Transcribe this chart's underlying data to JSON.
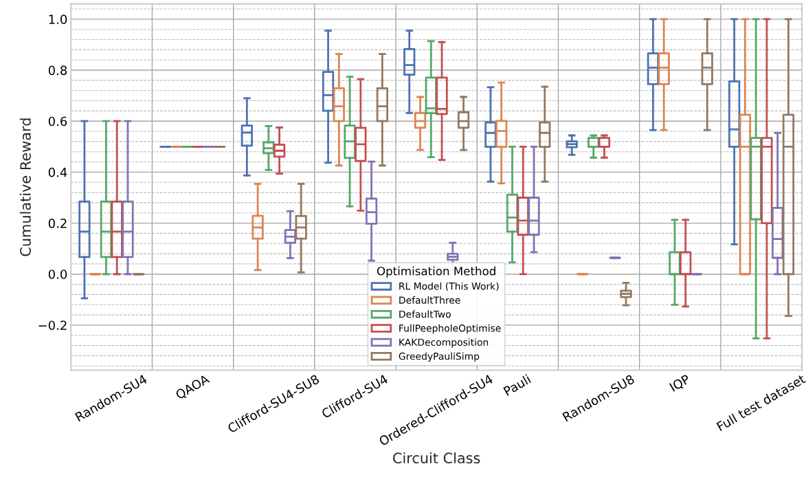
{
  "chart_data": {
    "type": "box",
    "xlabel": "Circuit Class",
    "ylabel": "Cumulative Reward",
    "legend_title": "Optimisation Method",
    "legend": "bottom",
    "grid": true,
    "categories": [
      "Random-SU4",
      "QAOA",
      "Clifford-SU4-SU8",
      "Clifford-SU4",
      "Ordered-Clifford-SU4",
      "Pauli",
      "Random-SU8",
      "IQP",
      "Full test dataset"
    ],
    "ylim": [
      -0.377,
      1.06
    ],
    "yticks": [
      {
        "value": -0.2,
        "label": "−0.2"
      },
      {
        "value": 0.0,
        "label": "0.0"
      },
      {
        "value": 0.2,
        "label": "0.2"
      },
      {
        "value": 0.4,
        "label": "0.4"
      },
      {
        "value": 0.6,
        "label": "0.6"
      },
      {
        "value": 0.8,
        "label": "0.8"
      },
      {
        "value": 1.0,
        "label": "1.0"
      }
    ],
    "series": [
      {
        "name": "RL Model (This Work)",
        "color": "#4c72b0",
        "boxes": [
          {
            "low": -0.095,
            "q1": 0.067,
            "median": 0.167,
            "q3": 0.285,
            "high": 0.6
          },
          {
            "low": 0.5,
            "q1": 0.5,
            "median": 0.5,
            "q3": 0.5,
            "high": 0.5
          },
          {
            "low": 0.387,
            "q1": 0.504,
            "median": 0.555,
            "q3": 0.583,
            "high": 0.69
          },
          {
            "low": 0.437,
            "q1": 0.641,
            "median": 0.702,
            "q3": 0.793,
            "high": 0.955
          },
          {
            "low": 0.632,
            "q1": 0.782,
            "median": 0.82,
            "q3": 0.883,
            "high": 0.955
          },
          {
            "low": 0.363,
            "q1": 0.499,
            "median": 0.554,
            "q3": 0.595,
            "high": 0.733
          },
          {
            "low": 0.468,
            "q1": 0.498,
            "median": 0.51,
            "q3": 0.521,
            "high": 0.544
          },
          {
            "low": 0.565,
            "q1": 0.745,
            "median": 0.81,
            "q3": 0.866,
            "high": 1.0
          },
          {
            "low": 0.117,
            "q1": 0.5,
            "median": 0.568,
            "q3": 0.756,
            "high": 1.0
          }
        ]
      },
      {
        "name": "DefaultThree",
        "color": "#dd8452",
        "boxes": [
          {
            "low": 0.0,
            "q1": 0.0,
            "median": 0.0,
            "q3": 0.0,
            "high": 0.0
          },
          {
            "low": 0.5,
            "q1": 0.5,
            "median": 0.5,
            "q3": 0.5,
            "high": 0.5
          },
          {
            "low": 0.016,
            "q1": 0.139,
            "median": 0.183,
            "q3": 0.229,
            "high": 0.354
          },
          {
            "low": 0.426,
            "q1": 0.6,
            "median": 0.658,
            "q3": 0.729,
            "high": 0.863
          },
          {
            "low": 0.487,
            "q1": 0.574,
            "median": 0.6,
            "q3": 0.632,
            "high": 0.695
          },
          {
            "low": 0.356,
            "q1": 0.499,
            "median": 0.561,
            "q3": 0.601,
            "high": 0.751
          },
          {
            "low": 0.0,
            "q1": 0.0,
            "median": 0.0,
            "q3": 0.0,
            "high": 0.0
          },
          {
            "low": 0.565,
            "q1": 0.745,
            "median": 0.81,
            "q3": 0.866,
            "high": 1.0
          },
          {
            "low": 0.0,
            "q1": 0.0,
            "median": 0.5,
            "q3": 0.625,
            "high": 1.0
          }
        ]
      },
      {
        "name": "DefaultTwo",
        "color": "#55a868",
        "boxes": [
          {
            "low": 0.0,
            "q1": 0.067,
            "median": 0.167,
            "q3": 0.285,
            "high": 0.6
          },
          {
            "low": 0.5,
            "q1": 0.5,
            "median": 0.5,
            "q3": 0.5,
            "high": 0.5
          },
          {
            "low": 0.409,
            "q1": 0.474,
            "median": 0.494,
            "q3": 0.517,
            "high": 0.581
          },
          {
            "low": 0.266,
            "q1": 0.456,
            "median": 0.521,
            "q3": 0.583,
            "high": 0.774
          },
          {
            "low": 0.459,
            "q1": 0.631,
            "median": 0.65,
            "q3": 0.771,
            "high": 0.914
          },
          {
            "low": 0.046,
            "q1": 0.167,
            "median": 0.222,
            "q3": 0.312,
            "high": 0.5
          },
          {
            "low": 0.457,
            "q1": 0.5,
            "median": 0.5,
            "q3": 0.534,
            "high": 0.544
          },
          {
            "low": -0.12,
            "q1": 0.0,
            "median": 0.0,
            "q3": 0.086,
            "high": 0.213
          },
          {
            "low": -0.252,
            "q1": 0.215,
            "median": 0.5,
            "q3": 0.534,
            "high": 1.0
          }
        ]
      },
      {
        "name": "FullPeepholeOptimise",
        "color": "#c44e52",
        "boxes": [
          {
            "low": 0.0,
            "q1": 0.067,
            "median": 0.167,
            "q3": 0.285,
            "high": 0.6
          },
          {
            "low": 0.5,
            "q1": 0.5,
            "median": 0.5,
            "q3": 0.5,
            "high": 0.5
          },
          {
            "low": 0.394,
            "q1": 0.461,
            "median": 0.484,
            "q3": 0.508,
            "high": 0.575
          },
          {
            "low": 0.249,
            "q1": 0.444,
            "median": 0.509,
            "q3": 0.574,
            "high": 0.765
          },
          {
            "low": 0.448,
            "q1": 0.628,
            "median": 0.648,
            "q3": 0.771,
            "high": 0.91
          },
          {
            "low": 0.0,
            "q1": 0.154,
            "median": 0.21,
            "q3": 0.3,
            "high": 0.5
          },
          {
            "low": 0.457,
            "q1": 0.5,
            "median": 0.5,
            "q3": 0.534,
            "high": 0.544
          },
          {
            "low": -0.127,
            "q1": 0.0,
            "median": 0.0,
            "q3": 0.086,
            "high": 0.213
          },
          {
            "low": -0.252,
            "q1": 0.2,
            "median": 0.5,
            "q3": 0.534,
            "high": 1.0
          }
        ]
      },
      {
        "name": "KAKDecomposition",
        "color": "#8172b3",
        "boxes": [
          {
            "low": 0.0,
            "q1": 0.067,
            "median": 0.167,
            "q3": 0.285,
            "high": 0.6
          },
          {
            "low": 0.5,
            "q1": 0.5,
            "median": 0.5,
            "q3": 0.5,
            "high": 0.5
          },
          {
            "low": 0.063,
            "q1": 0.123,
            "median": 0.147,
            "q3": 0.173,
            "high": 0.247
          },
          {
            "low": 0.053,
            "q1": 0.198,
            "median": 0.243,
            "q3": 0.296,
            "high": 0.441
          },
          {
            "low": 0.016,
            "q1": 0.056,
            "median": 0.068,
            "q3": 0.08,
            "high": 0.123
          },
          {
            "low": 0.086,
            "q1": 0.154,
            "median": 0.21,
            "q3": 0.3,
            "high": 0.5
          },
          {
            "low": 0.064,
            "q1": 0.064,
            "median": 0.064,
            "q3": 0.064,
            "high": 0.064
          },
          {
            "low": 0.0,
            "q1": 0.0,
            "median": 0.0,
            "q3": 0.0,
            "high": 0.0
          },
          {
            "low": 0.0,
            "q1": 0.064,
            "median": 0.138,
            "q3": 0.26,
            "high": 0.554
          }
        ]
      },
      {
        "name": "GreedyPauliSimp",
        "color": "#937860",
        "boxes": [
          {
            "low": 0.0,
            "q1": 0.0,
            "median": 0.0,
            "q3": 0.0,
            "high": 0.0
          },
          {
            "low": 0.5,
            "q1": 0.5,
            "median": 0.5,
            "q3": 0.5,
            "high": 0.5
          },
          {
            "low": 0.007,
            "q1": 0.139,
            "median": 0.183,
            "q3": 0.228,
            "high": 0.354
          },
          {
            "low": 0.426,
            "q1": 0.6,
            "median": 0.658,
            "q3": 0.729,
            "high": 0.863
          },
          {
            "low": 0.487,
            "q1": 0.574,
            "median": 0.6,
            "q3": 0.635,
            "high": 0.695
          },
          {
            "low": 0.363,
            "q1": 0.499,
            "median": 0.554,
            "q3": 0.595,
            "high": 0.735
          },
          {
            "low": -0.122,
            "q1": -0.09,
            "median": -0.077,
            "q3": -0.065,
            "high": -0.034
          },
          {
            "low": 0.565,
            "q1": 0.745,
            "median": 0.81,
            "q3": 0.866,
            "high": 1.0
          },
          {
            "low": -0.164,
            "q1": 0.0,
            "median": 0.5,
            "q3": 0.625,
            "high": 1.0
          }
        ]
      }
    ]
  }
}
